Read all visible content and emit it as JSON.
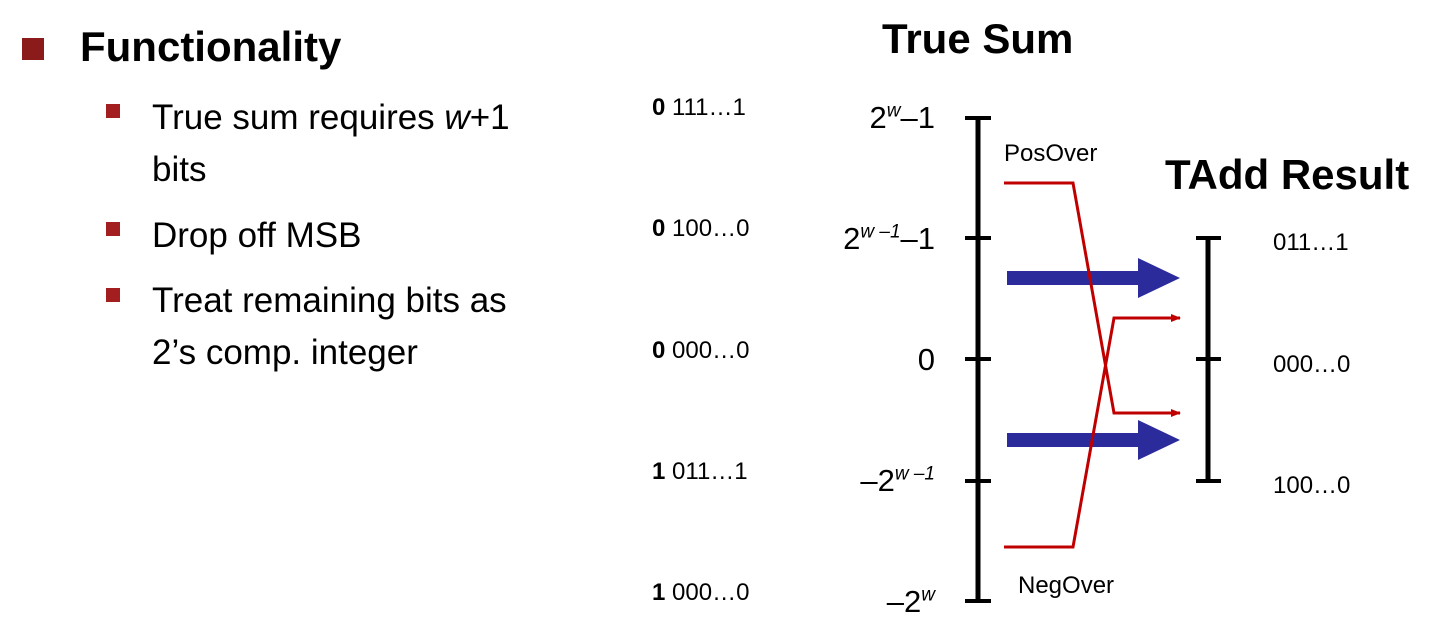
{
  "heading": "Functionality",
  "bullets": {
    "b1_line1": "True sum requires ",
    "b1_w": "w",
    "b1_tail": "+1",
    "b1_line2": "bits",
    "b2": "Drop off MSB",
    "b3_line1": "Treat remaining bits as",
    "b3_line2": "2’s comp. integer"
  },
  "binary_labels": [
    {
      "msb": "0",
      "rest": " 111…1"
    },
    {
      "msb": "0",
      "rest": " 100…0"
    },
    {
      "msb": "0",
      "rest": " 000…0"
    },
    {
      "msb": "1",
      "rest": " 011…1"
    },
    {
      "msb": "1",
      "rest": " 000…0"
    }
  ],
  "true_sum": {
    "title": "True Sum",
    "v1_base": "2",
    "v1_sup": "w",
    "v1_tail": "–1",
    "v2_base": "2",
    "v2_sup": "w –1",
    "v2_tail": "–1",
    "v3": "0",
    "v4_base": "–2",
    "v4_sup": "w –1",
    "v5_base": "–2",
    "v5_sup": "w",
    "pos_over": "PosOver",
    "neg_over": "NegOver"
  },
  "tadd": {
    "title": "TAdd Result",
    "labels": [
      "011…1",
      "000…0",
      "100…0"
    ]
  },
  "colors": {
    "bullet": "#8b1a1a",
    "overflow_line": "#c00000",
    "blue_arrow": "#2b2b9b",
    "axis": "#000000"
  }
}
